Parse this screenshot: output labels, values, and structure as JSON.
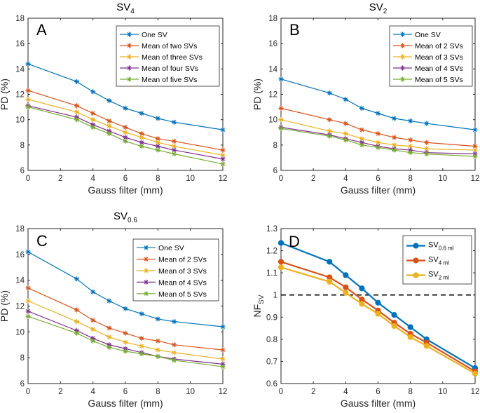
{
  "chart_data": [
    {
      "type": "line",
      "panel": "A",
      "title": "SV",
      "title_sub": "4",
      "xlabel": "Gauss filter (mm)",
      "ylabel": "PD (%)",
      "xlim": [
        0,
        12
      ],
      "ylim": [
        6,
        18
      ],
      "xticks": [
        0,
        2,
        4,
        6,
        8,
        10,
        12
      ],
      "yticks": [
        6,
        8,
        10,
        12,
        14,
        16,
        18
      ],
      "marker": "asterisk",
      "legend_position": "top-right",
      "x": [
        0,
        3,
        4,
        5,
        6,
        7,
        8,
        9,
        12
      ],
      "series": [
        {
          "name": "One SV",
          "color": "#0072BD",
          "values": [
            14.4,
            13.0,
            12.2,
            11.5,
            10.9,
            10.5,
            10.1,
            9.8,
            9.2
          ]
        },
        {
          "name": "Mean of two SVs",
          "color": "#D95319",
          "values": [
            12.3,
            11.1,
            10.5,
            9.9,
            9.4,
            8.9,
            8.5,
            8.3,
            7.6
          ]
        },
        {
          "name": "Mean of three SVs",
          "color": "#EDB120",
          "values": [
            11.6,
            10.6,
            10.0,
            9.5,
            9.0,
            8.6,
            8.2,
            7.9,
            7.2
          ]
        },
        {
          "name": "Mean of four SVs",
          "color": "#7E2F8E",
          "values": [
            11.1,
            10.2,
            9.6,
            9.1,
            8.6,
            8.2,
            7.9,
            7.6,
            6.9
          ]
        },
        {
          "name": "Mean of five SVs",
          "color": "#77AC30",
          "values": [
            11.0,
            10.0,
            9.4,
            8.9,
            8.3,
            7.9,
            7.6,
            7.3,
            6.5
          ]
        }
      ]
    },
    {
      "type": "line",
      "panel": "B",
      "title": "SV",
      "title_sub": "2",
      "xlabel": "Gauss filter (mm)",
      "ylabel": "PD (%)",
      "xlim": [
        0,
        12
      ],
      "ylim": [
        6,
        18
      ],
      "xticks": [
        0,
        2,
        4,
        6,
        8,
        10,
        12
      ],
      "yticks": [
        6,
        8,
        10,
        12,
        14,
        16,
        18
      ],
      "marker": "asterisk",
      "legend_position": "top-right",
      "x": [
        0,
        3,
        4,
        5,
        6,
        7,
        8,
        9,
        12
      ],
      "series": [
        {
          "name": "One SV",
          "color": "#0072BD",
          "values": [
            13.2,
            12.1,
            11.6,
            10.9,
            10.5,
            10.1,
            9.9,
            9.7,
            9.2
          ]
        },
        {
          "name": "Mean of 2 SVs",
          "color": "#D95319",
          "values": [
            10.9,
            10.0,
            9.7,
            9.2,
            8.9,
            8.6,
            8.4,
            8.2,
            7.9
          ]
        },
        {
          "name": "Mean of 3 SVs",
          "color": "#EDB120",
          "values": [
            10.0,
            9.1,
            8.9,
            8.5,
            8.2,
            8.0,
            7.9,
            7.7,
            7.6
          ]
        },
        {
          "name": "Mean of 4 SVs",
          "color": "#7E2F8E",
          "values": [
            9.4,
            8.8,
            8.5,
            8.2,
            7.9,
            7.7,
            7.6,
            7.4,
            7.3
          ]
        },
        {
          "name": "Mean of 5 SVs",
          "color": "#77AC30",
          "values": [
            9.3,
            8.7,
            8.4,
            8.0,
            7.8,
            7.6,
            7.4,
            7.3,
            7.1
          ]
        }
      ]
    },
    {
      "type": "line",
      "panel": "C",
      "title": "SV",
      "title_sub": "0.6",
      "xlabel": "Gauss filter (mm)",
      "ylabel": "PD (%)",
      "xlim": [
        0,
        12
      ],
      "ylim": [
        6,
        18
      ],
      "xticks": [
        0,
        2,
        4,
        6,
        8,
        10,
        12
      ],
      "yticks": [
        6,
        8,
        10,
        12,
        14,
        16,
        18
      ],
      "marker": "asterisk",
      "legend_position": "top-right",
      "x": [
        0,
        3,
        4,
        5,
        6,
        7,
        8,
        9,
        12
      ],
      "series": [
        {
          "name": "One SV",
          "color": "#0072BD",
          "values": [
            16.2,
            14.1,
            13.1,
            12.4,
            11.8,
            11.4,
            11.0,
            10.8,
            10.4
          ]
        },
        {
          "name": "Mean of 2 SVs",
          "color": "#D95319",
          "values": [
            13.4,
            11.7,
            10.9,
            10.3,
            9.9,
            9.5,
            9.3,
            9.0,
            8.6
          ]
        },
        {
          "name": "Mean of 3 SVs",
          "color": "#EDB120",
          "values": [
            12.4,
            10.8,
            10.2,
            9.6,
            9.2,
            8.9,
            8.6,
            8.4,
            7.9
          ]
        },
        {
          "name": "Mean of 4 SVs",
          "color": "#7E2F8E",
          "values": [
            11.6,
            10.1,
            9.5,
            9.0,
            8.7,
            8.4,
            8.1,
            7.9,
            7.5
          ]
        },
        {
          "name": "Mean of 5 SVs",
          "color": "#77AC30",
          "values": [
            11.2,
            9.9,
            9.3,
            8.8,
            8.5,
            8.3,
            8.1,
            7.8,
            7.3
          ]
        }
      ]
    },
    {
      "type": "line",
      "panel": "D",
      "title": "",
      "xlabel": "Gauss filter (mm)",
      "ylabel": "NF",
      "ylabel_sub": "SV",
      "xlim": [
        0,
        12
      ],
      "ylim": [
        0.6,
        1.3
      ],
      "xticks": [
        0,
        2,
        4,
        6,
        8,
        10,
        12
      ],
      "yticks": [
        0.6,
        0.7,
        0.8,
        0.9,
        1,
        1.1,
        1.2,
        1.3
      ],
      "marker": "dot",
      "reference_line": 1.0,
      "legend_position": "top-right",
      "x": [
        0,
        3,
        4,
        5,
        6,
        7,
        8,
        9,
        12
      ],
      "series": [
        {
          "name": "SV",
          "name_sub": "0.6 ml",
          "color": "#0072BD",
          "values": [
            1.235,
            1.15,
            1.09,
            1.03,
            0.965,
            0.91,
            0.855,
            0.8,
            0.67
          ]
        },
        {
          "name": "SV",
          "name_sub": "4 ml",
          "color": "#D95319",
          "values": [
            1.15,
            1.08,
            1.035,
            0.98,
            0.93,
            0.875,
            0.825,
            0.785,
            0.655
          ]
        },
        {
          "name": "SV",
          "name_sub": "2 ml",
          "color": "#EDB120",
          "values": [
            1.125,
            1.06,
            1.01,
            0.96,
            0.915,
            0.86,
            0.81,
            0.77,
            0.645
          ]
        }
      ]
    }
  ]
}
